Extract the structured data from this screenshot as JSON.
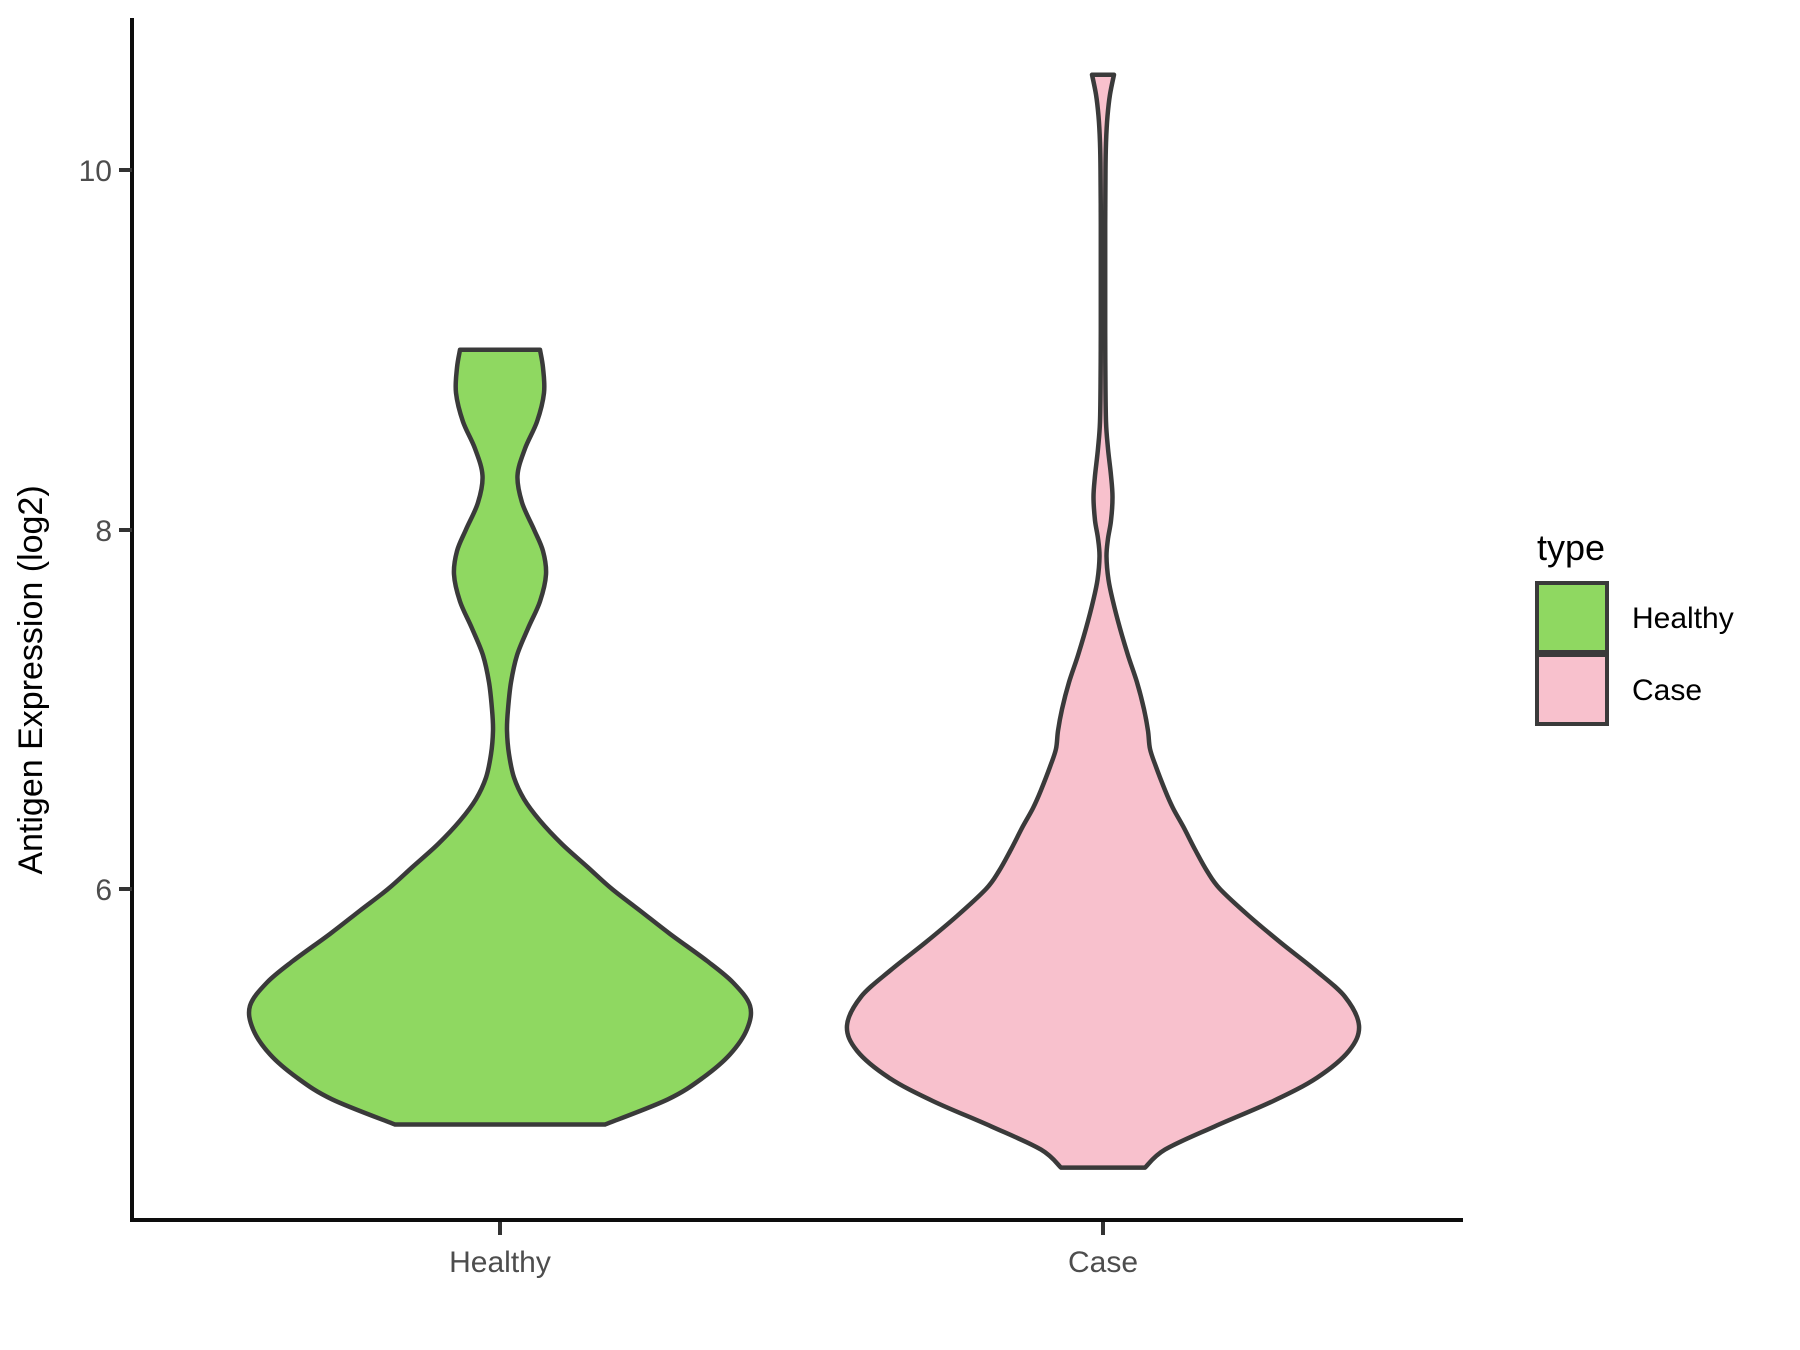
{
  "figure": {
    "ylabel": "Antigen Expression (log2)",
    "y_tick_labels": [
      "10",
      "8",
      "6"
    ],
    "x_tick_labels": [
      "Healthy",
      "Case"
    ]
  },
  "legend": {
    "title": "type",
    "items": [
      {
        "label": "Healthy",
        "color": "#8FD861"
      },
      {
        "label": "Case",
        "color": "#F8C1CD"
      }
    ]
  },
  "colors": {
    "violin_outline": "#3a3a3a",
    "axis_line": "#0d0d0d",
    "tick_mark": "#333333",
    "tick_text": "#4d4d4d",
    "background": "#ffffff"
  },
  "chart_data": {
    "type": "violin",
    "categories": [
      "Healthy",
      "Case"
    ],
    "title": "",
    "xlabel": "",
    "ylabel": "Antigen Expression (log2)",
    "yticks": [
      6,
      8,
      10
    ],
    "ylim": [
      4.15,
      10.85
    ],
    "legend_title": "type",
    "legend_position": "right",
    "grid": false,
    "theme": "classic",
    "series": [
      {
        "name": "Healthy",
        "fill": "#8FD861",
        "value_range": [
          4.69,
          9.0
        ],
        "peak_value": 5.35,
        "secondary_modes": [
          7.75,
          8.8
        ],
        "profile_units": "[expression_log2_value, half_width_px]",
        "profile": [
          [
            9.0,
            40
          ],
          [
            8.9,
            43
          ],
          [
            8.76,
            44
          ],
          [
            8.6,
            37
          ],
          [
            8.45,
            25
          ],
          [
            8.3,
            17.5
          ],
          [
            8.15,
            22
          ],
          [
            8.0,
            34
          ],
          [
            7.88,
            43
          ],
          [
            7.75,
            46
          ],
          [
            7.6,
            40
          ],
          [
            7.45,
            28
          ],
          [
            7.3,
            17
          ],
          [
            7.15,
            11
          ],
          [
            7.0,
            8
          ],
          [
            6.88,
            7
          ],
          [
            6.75,
            9
          ],
          [
            6.62,
            14
          ],
          [
            6.5,
            24
          ],
          [
            6.38,
            40
          ],
          [
            6.25,
            62
          ],
          [
            6.12,
            88
          ],
          [
            6.0,
            112
          ],
          [
            5.88,
            140
          ],
          [
            5.75,
            170
          ],
          [
            5.6,
            207
          ],
          [
            5.48,
            233
          ],
          [
            5.35,
            250
          ],
          [
            5.22,
            247
          ],
          [
            5.08,
            230
          ],
          [
            4.95,
            203
          ],
          [
            4.83,
            168
          ],
          [
            4.69,
            105
          ]
        ]
      },
      {
        "name": "Case",
        "fill": "#F8C1CD",
        "value_range": [
          4.45,
          10.53
        ],
        "peak_value": 5.24,
        "secondary_modes": [
          8.15
        ],
        "profile_units": "[expression_log2_value, half_width_px]",
        "profile": [
          [
            10.53,
            11
          ],
          [
            10.42,
            7
          ],
          [
            10.3,
            4.5
          ],
          [
            10.15,
            3
          ],
          [
            10.0,
            2.5
          ],
          [
            9.7,
            2.2
          ],
          [
            9.4,
            2.2
          ],
          [
            9.1,
            2.2
          ],
          [
            8.85,
            2.4
          ],
          [
            8.6,
            3
          ],
          [
            8.45,
            5
          ],
          [
            8.3,
            8
          ],
          [
            8.18,
            9.5
          ],
          [
            8.05,
            8
          ],
          [
            7.95,
            5
          ],
          [
            7.85,
            3.5
          ],
          [
            7.72,
            5.5
          ],
          [
            7.6,
            10
          ],
          [
            7.45,
            17
          ],
          [
            7.3,
            25
          ],
          [
            7.15,
            34
          ],
          [
            7.0,
            41
          ],
          [
            6.88,
            45
          ],
          [
            6.78,
            47
          ],
          [
            6.68,
            53
          ],
          [
            6.55,
            62
          ],
          [
            6.45,
            70
          ],
          [
            6.35,
            80
          ],
          [
            6.22,
            92
          ],
          [
            6.1,
            104
          ],
          [
            6.0,
            117
          ],
          [
            5.85,
            146
          ],
          [
            5.7,
            178
          ],
          [
            5.55,
            212
          ],
          [
            5.4,
            242
          ],
          [
            5.24,
            256
          ],
          [
            5.1,
            246
          ],
          [
            4.95,
            214
          ],
          [
            4.82,
            170
          ],
          [
            4.68,
            112
          ],
          [
            4.55,
            62
          ],
          [
            4.45,
            42
          ]
        ]
      }
    ]
  }
}
